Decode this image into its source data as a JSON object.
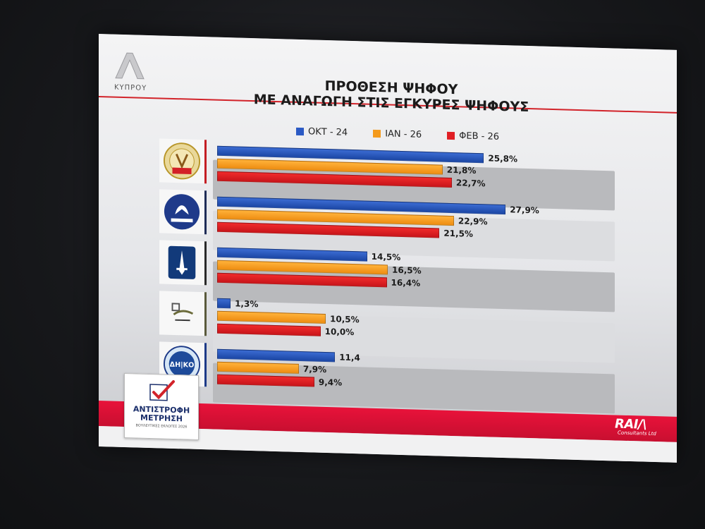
{
  "title_line1": "ΠΡΟΘΕΣΗ ΨΗΦΟΥ",
  "title_line2": "ΜΕ ΑΝΑΓΩΓΗ ΣΤΙΣ ΕΓΚΥΡΕΣ ΨΗΦΟΥΣ",
  "channel": {
    "sub": "ΚΥΠΡΟΥ"
  },
  "badge": {
    "line1": "ΑΝΤΙΣΤΡΟΦΗ",
    "line2": "ΜΕΤΡΗΣΗ",
    "line3": "ΒΟΥΛΕΥΤΙΚΕΣ ΕΚΛΟΓΕΣ 2026"
  },
  "pollster": {
    "name": "RAI/\\",
    "sub": "Consultants Ltd"
  },
  "colors": {
    "oct": "#2a59c4",
    "jan": "#f49a1c",
    "feb": "#e01e24",
    "accent": "#d2232a"
  },
  "chart_data": {
    "type": "bar",
    "orientation": "horizontal",
    "legend_placement": "top",
    "categories": [
      "ΑΚΕΛ",
      "ΔΗΣΥ",
      "ΕΛΑΜ",
      "ΑΛΜΑ",
      "ΔΗΚΟ"
    ],
    "series": [
      {
        "name": "ΟΚΤ - 24",
        "values": [
          25.8,
          27.9,
          14.5,
          1.3,
          11.4
        ],
        "labels": [
          "25,8%",
          "27,9%",
          "14,5%",
          "1,3%",
          "11,4"
        ]
      },
      {
        "name": "ΙΑΝ - 26",
        "values": [
          21.8,
          22.9,
          16.5,
          10.5,
          7.9
        ],
        "labels": [
          "21,8%",
          "22,9%",
          "16,5%",
          "10,5%",
          "7,9%"
        ]
      },
      {
        "name": "ΦΕΒ - 26",
        "values": [
          22.7,
          21.5,
          16.4,
          10.0,
          9.4
        ],
        "labels": [
          "22,7%",
          "21,5%",
          "16,4%",
          "10,0%",
          "9,4%"
        ]
      }
    ],
    "xlim": [
      0,
      30
    ]
  }
}
